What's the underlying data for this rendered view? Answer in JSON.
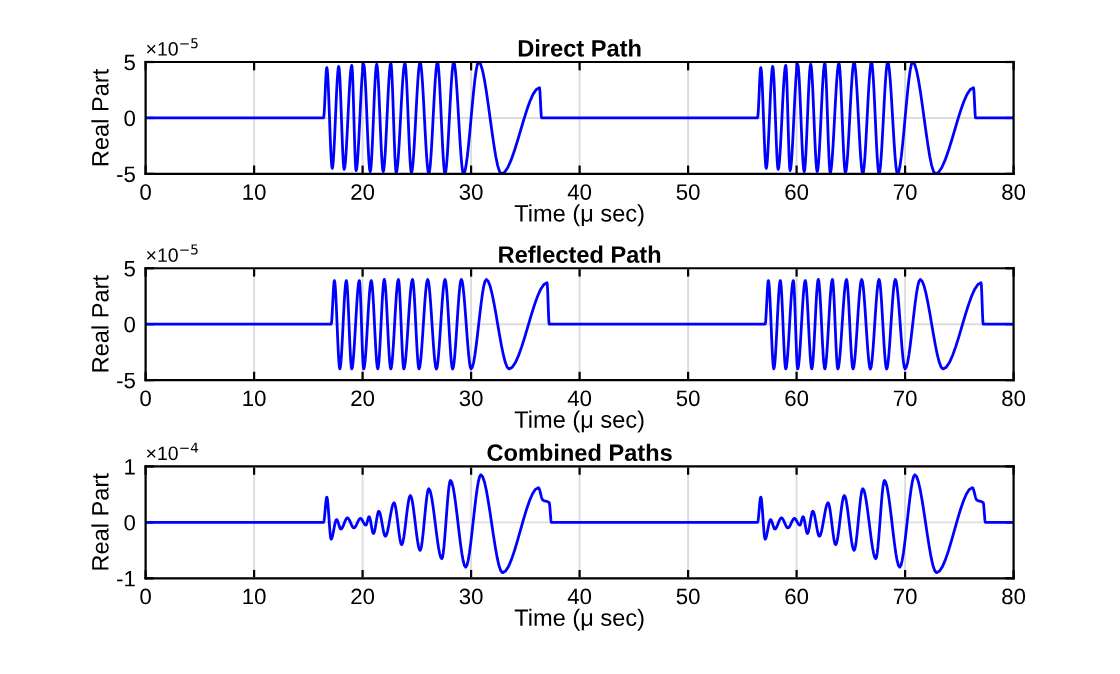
{
  "chart_data": [
    {
      "type": "line",
      "title": "Direct Path",
      "xlabel": "Time (μ sec)",
      "ylabel": "Real Part",
      "annotations": [
        "×10$^{−5}$"
      ],
      "xlim": [
        0,
        80
      ],
      "ylim": [
        -5,
        5
      ],
      "xticks": [
        0,
        10,
        20,
        30,
        40,
        50,
        60,
        70,
        80
      ],
      "yticks": [
        -5,
        0,
        5
      ],
      "grid": true,
      "series": [
        {
          "color": "#0000ff",
          "x": [
            0,
            16.4,
            16.7,
            17.2,
            17.8,
            18.3,
            19.0,
            19.4,
            20.1,
            20.7,
            21.3,
            21.9,
            22.6,
            23.1,
            23.9,
            24.5,
            25.3,
            26.1,
            26.9,
            27.6,
            28.4,
            29.3,
            30.7,
            32.8,
            36.3,
            36.5,
            56.4,
            56.7,
            57.2,
            57.8,
            58.3,
            59.0,
            59.4,
            60.1,
            60.7,
            61.3,
            61.9,
            62.6,
            63.1,
            63.9,
            64.5,
            65.3,
            66.1,
            66.9,
            67.6,
            68.4,
            69.3,
            70.7,
            72.8,
            76.3,
            76.5,
            80
          ],
          "values": [
            0,
            0,
            4.5,
            -4.5,
            4.6,
            -4.6,
            4.7,
            -4.7,
            4.8,
            -4.8,
            4.8,
            -4.8,
            4.9,
            -4.9,
            4.9,
            -4.9,
            5,
            -5,
            5,
            -5,
            5,
            -5,
            5,
            -5,
            2.7,
            0,
            0,
            4.5,
            -4.5,
            4.6,
            -4.6,
            4.7,
            -4.7,
            4.8,
            -4.8,
            4.8,
            -4.8,
            4.9,
            -4.9,
            4.9,
            -4.9,
            5,
            -5,
            5,
            -5,
            5,
            -5,
            5,
            -5,
            2.7,
            0,
            0
          ]
        }
      ]
    },
    {
      "type": "line",
      "title": "Reflected Path",
      "xlabel": "Time (μ sec)",
      "ylabel": "Real Part",
      "annotations": [
        "×10$^{−5}$"
      ],
      "xlim": [
        0,
        80
      ],
      "ylim": [
        -5,
        5
      ],
      "xticks": [
        0,
        10,
        20,
        30,
        40,
        50,
        60,
        70,
        80
      ],
      "yticks": [
        -5,
        0,
        5
      ],
      "grid": true,
      "series": [
        {
          "color": "#0000ff",
          "x": [
            0,
            17.1,
            17.4,
            17.9,
            18.5,
            19.0,
            19.7,
            20.1,
            20.8,
            21.4,
            22.0,
            22.6,
            23.3,
            23.8,
            24.6,
            25.2,
            26.0,
            26.8,
            27.6,
            28.3,
            29.1,
            30.0,
            31.4,
            33.5,
            37.0,
            37.2,
            57.1,
            57.4,
            57.9,
            58.5,
            59.0,
            59.7,
            60.1,
            60.8,
            61.4,
            62.0,
            62.6,
            63.3,
            63.8,
            64.6,
            65.2,
            66.0,
            66.8,
            67.6,
            68.3,
            69.1,
            70.0,
            71.4,
            73.5,
            77.0,
            77.2,
            80
          ],
          "values": [
            0,
            0,
            3.9,
            -4,
            3.9,
            -4,
            3.9,
            -4,
            3.9,
            -4,
            4,
            -4,
            4,
            -4,
            4,
            -4,
            4,
            -4,
            4,
            -4,
            4,
            -4,
            4,
            -4,
            3.7,
            0,
            0,
            3.9,
            -4,
            3.9,
            -4,
            3.9,
            -4,
            3.9,
            -4,
            4,
            -4,
            4,
            -4,
            4,
            -4,
            4,
            -4,
            4,
            -4,
            4,
            -4,
            4,
            -4,
            3.7,
            0,
            0
          ]
        }
      ]
    },
    {
      "type": "line",
      "title": "Combined Paths",
      "xlabel": "Time (μ sec)",
      "ylabel": "Real Part",
      "annotations": [
        "×10$^{−4}$"
      ],
      "xlim": [
        0,
        80
      ],
      "ylim": [
        -1,
        1
      ],
      "xticks": [
        0,
        10,
        20,
        30,
        40,
        50,
        60,
        70,
        80
      ],
      "yticks": [
        -1,
        0,
        1
      ],
      "grid": true,
      "series": [
        {
          "color": "#0000ff",
          "x": [
            0,
            16.4,
            16.7,
            17.1,
            17.6,
            18.0,
            18.6,
            19.2,
            19.8,
            20.3,
            20.6,
            21.0,
            21.5,
            22.1,
            22.9,
            23.6,
            24.4,
            25.3,
            26.1,
            27.3,
            28.1,
            29.5,
            30.9,
            32.9,
            36.2,
            36.6,
            37.2,
            37.4,
            56.4,
            56.7,
            57.1,
            57.6,
            58.0,
            58.6,
            59.2,
            59.8,
            60.3,
            60.6,
            61.0,
            61.5,
            62.1,
            62.9,
            63.6,
            64.4,
            65.3,
            66.1,
            67.3,
            68.1,
            69.5,
            70.9,
            72.9,
            76.2,
            76.6,
            77.2,
            77.4,
            80
          ],
          "values": [
            0,
            0,
            0.45,
            -0.3,
            0.05,
            -0.12,
            0.08,
            -0.1,
            0.07,
            -0.05,
            0.1,
            -0.2,
            0.2,
            -0.25,
            0.35,
            -0.4,
            0.48,
            -0.5,
            0.6,
            -0.65,
            0.75,
            -0.8,
            0.85,
            -0.9,
            0.62,
            0.4,
            0.35,
            0,
            0,
            0.45,
            -0.3,
            0.05,
            -0.12,
            0.08,
            -0.1,
            0.07,
            -0.05,
            0.1,
            -0.2,
            0.2,
            -0.25,
            0.35,
            -0.4,
            0.48,
            -0.5,
            0.6,
            -0.65,
            0.75,
            -0.8,
            0.85,
            -0.9,
            0.62,
            0.4,
            0.35,
            0,
            0
          ]
        }
      ]
    }
  ]
}
